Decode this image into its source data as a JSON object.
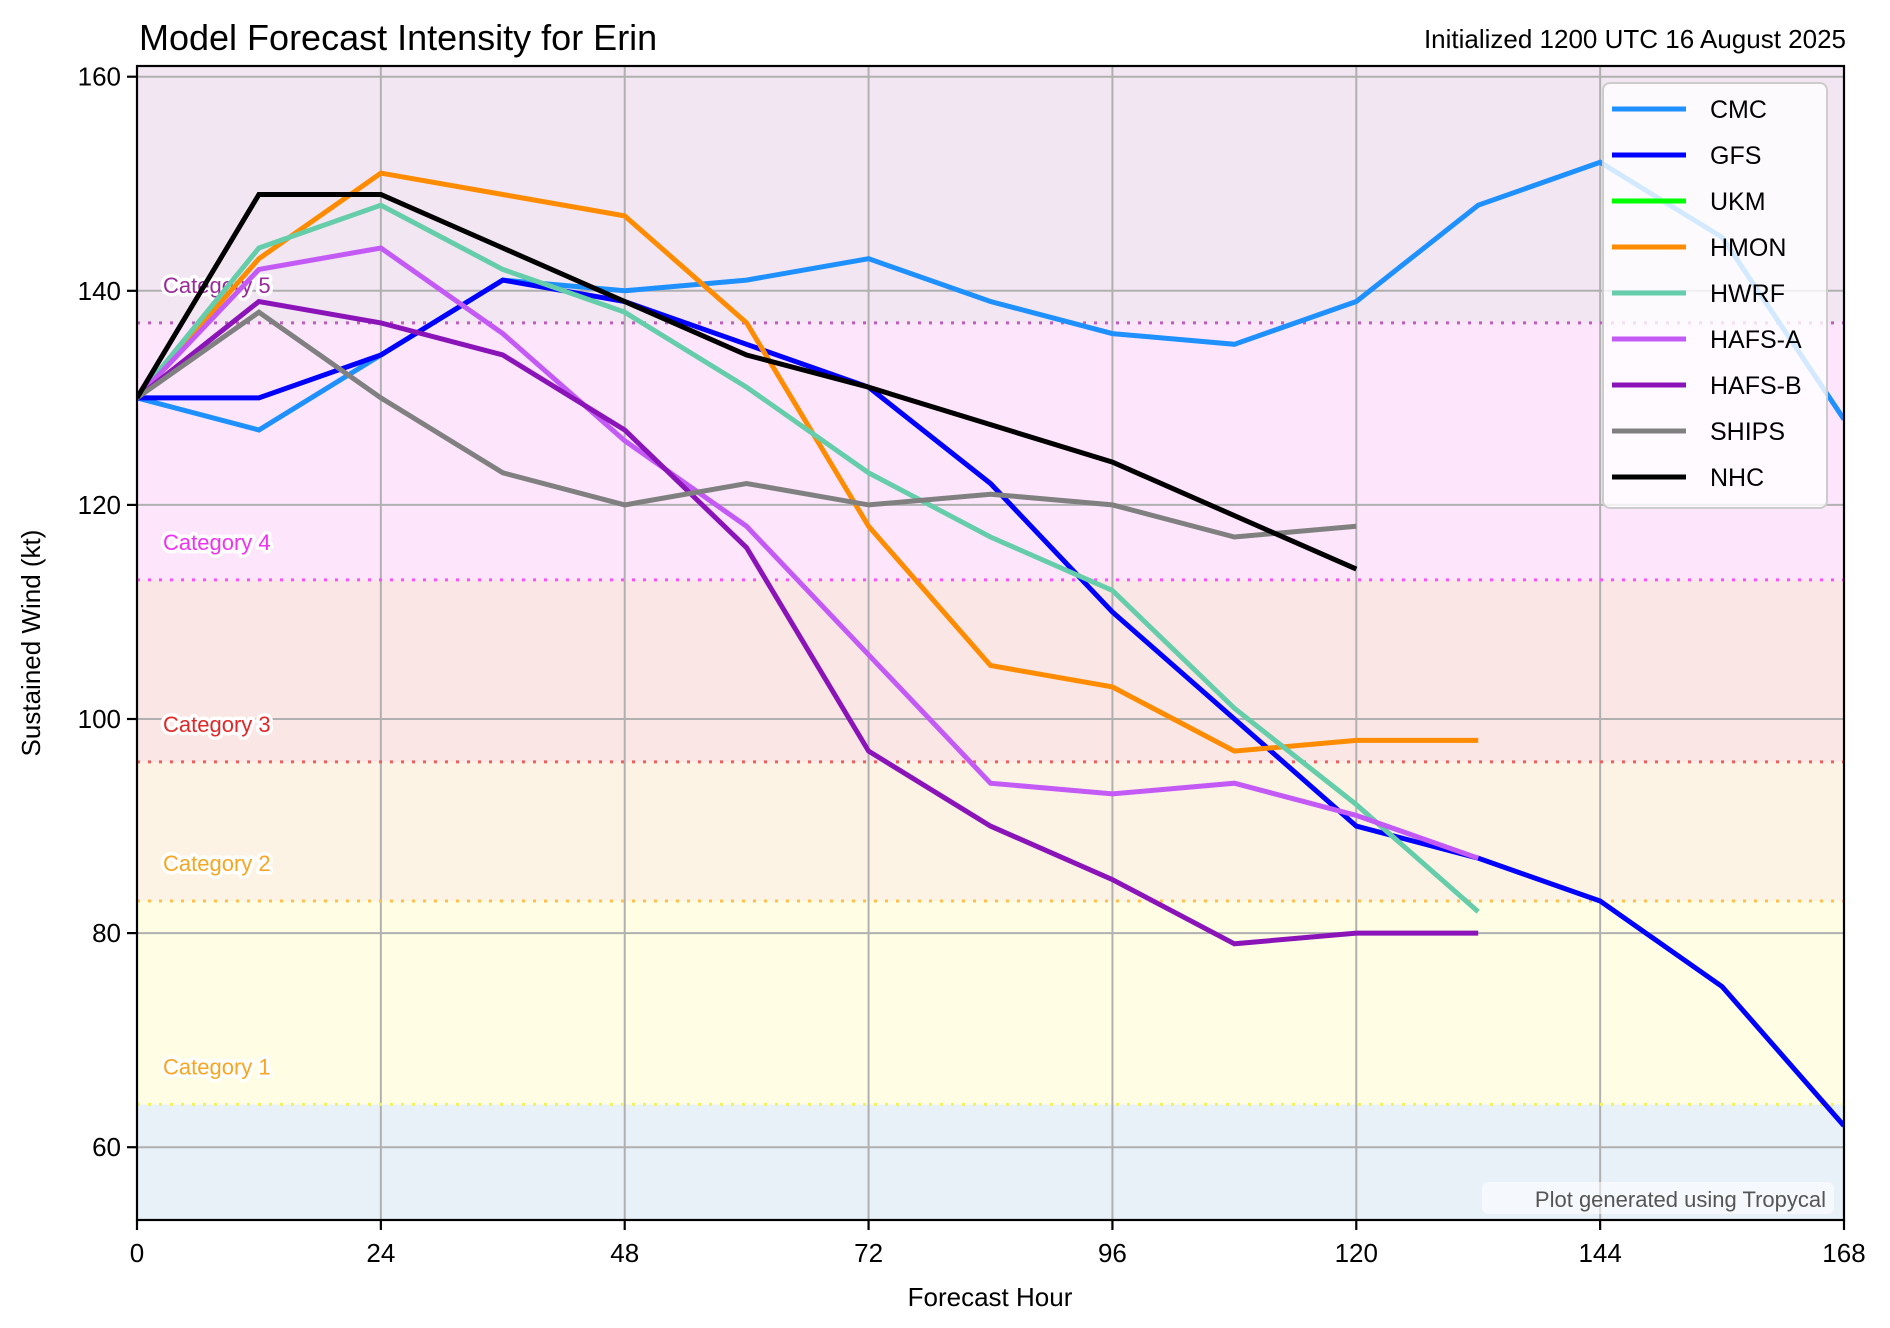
{
  "chart_data": {
    "type": "line",
    "title": "Model Forecast Intensity for Erin",
    "subtitle": "Initialized 1200 UTC 16 August 2025",
    "xlabel": "Forecast Hour",
    "ylabel": "Sustained Wind (kt)",
    "xlim": [
      0,
      168
    ],
    "ylim": [
      53.2,
      161
    ],
    "xticks": [
      0,
      24,
      48,
      72,
      96,
      120,
      144,
      168
    ],
    "yticks": [
      60,
      80,
      100,
      120,
      140,
      160
    ],
    "grid": true,
    "legend_position": "top-right",
    "credit": "Plot generated using Tropycal",
    "categories": [
      {
        "name": "Category 1",
        "threshold": 64,
        "label_color": "#f5a623",
        "line_color": "#f2f25a",
        "band_color": "#fffee4"
      },
      {
        "name": "Category 2",
        "threshold": 83,
        "label_color": "#f5a623",
        "line_color": "#ffbf4d",
        "band_color": "#fdf3e5"
      },
      {
        "name": "Category 3",
        "threshold": 96,
        "label_color": "#e02828",
        "line_color": "#f06060",
        "band_color": "#fbe6e6"
      },
      {
        "name": "Category 4",
        "threshold": 113,
        "label_color": "#f032f0",
        "line_color": "#ff50ff",
        "band_color": "#fde6fc"
      },
      {
        "name": "Category 5",
        "threshold": 137,
        "label_color": "#9a2a9a",
        "line_color": "#c05ec0",
        "band_color": "#f2e6f2"
      }
    ],
    "below_cat1_band_color": "#e8f0f8",
    "series": [
      {
        "name": "CMC",
        "color": "#1e90ff",
        "x": [
          0,
          12,
          24,
          36,
          48,
          60,
          72,
          84,
          96,
          108,
          120,
          132,
          144,
          156,
          168
        ],
        "y": [
          130,
          127,
          134,
          141,
          140,
          141,
          143,
          139,
          136,
          135,
          139,
          148,
          152,
          145,
          128
        ]
      },
      {
        "name": "GFS",
        "color": "#0000ff",
        "x": [
          0,
          12,
          24,
          36,
          48,
          60,
          72,
          84,
          96,
          108,
          120,
          132,
          144,
          156,
          168
        ],
        "y": [
          130,
          130,
          134,
          141,
          139,
          135,
          131,
          122,
          110,
          100,
          90,
          87,
          83,
          75,
          62
        ]
      },
      {
        "name": "UKM",
        "color": "#00ff00",
        "x": [],
        "y": []
      },
      {
        "name": "HMON",
        "color": "#ff8c00",
        "x": [
          0,
          12,
          24,
          36,
          48,
          60,
          72,
          84,
          96,
          108,
          120,
          132
        ],
        "y": [
          130,
          143,
          151,
          149,
          147,
          137,
          118,
          105,
          103,
          97,
          98,
          98
        ]
      },
      {
        "name": "HWRF",
        "color": "#66cdaa",
        "x": [
          0,
          12,
          24,
          36,
          48,
          60,
          72,
          84,
          96,
          108,
          120,
          132
        ],
        "y": [
          130,
          144,
          148,
          142,
          138,
          131,
          123,
          117,
          112,
          101,
          92,
          82
        ]
      },
      {
        "name": "HAFS-A",
        "color": "#c45af5",
        "x": [
          0,
          12,
          24,
          36,
          48,
          60,
          72,
          84,
          96,
          108,
          120,
          132
        ],
        "y": [
          130,
          142,
          144,
          136,
          126,
          118,
          106,
          94,
          93,
          94,
          91,
          87
        ]
      },
      {
        "name": "HAFS-B",
        "color": "#8a14b8",
        "x": [
          0,
          12,
          24,
          36,
          48,
          60,
          72,
          84,
          96,
          108,
          120,
          132
        ],
        "y": [
          130,
          139,
          137,
          134,
          127,
          116,
          97,
          90,
          85,
          79,
          80,
          80
        ]
      },
      {
        "name": "SHIPS",
        "color": "#808080",
        "x": [
          0,
          12,
          24,
          36,
          48,
          60,
          72,
          84,
          96,
          108,
          120
        ],
        "y": [
          130,
          138,
          130,
          123,
          120,
          122,
          120,
          121,
          120,
          117,
          118
        ]
      },
      {
        "name": "NHC",
        "color": "#000000",
        "x": [
          0,
          12,
          24,
          36,
          48,
          60,
          72,
          96,
          120
        ],
        "y": [
          130,
          149,
          149,
          144,
          139,
          134,
          131,
          124,
          114
        ]
      }
    ]
  }
}
